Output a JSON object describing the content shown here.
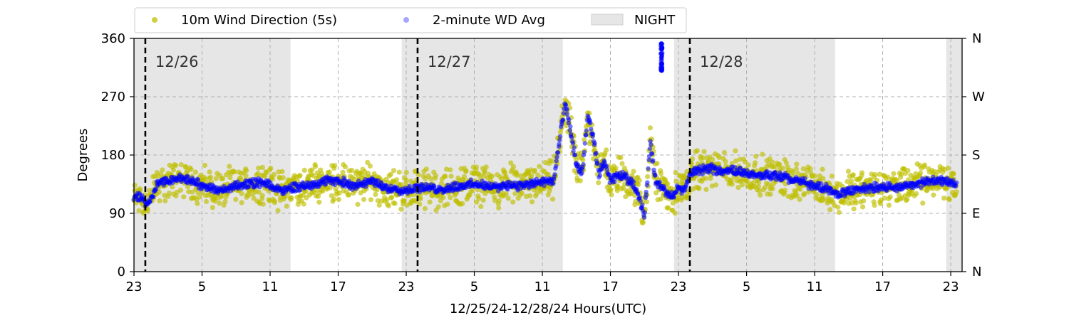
{
  "chart_data": {
    "type": "scatter",
    "xlabel": "12/25/24-12/28/24  Hours(UTC)",
    "ylabel": "Degrees",
    "ylim": [
      0,
      360
    ],
    "y_ticks": [
      0,
      90,
      180,
      270,
      360
    ],
    "y_tick_labels": [
      "0",
      "90",
      "180",
      "270",
      "360"
    ],
    "y2_ticks": [
      0,
      90,
      180,
      270,
      360
    ],
    "y2_tick_labels": [
      "N",
      "E",
      "S",
      "W",
      "N"
    ],
    "x_axis_unit": "hours since 23:00 UTC 12/25/24",
    "xlim": [
      0,
      73
    ],
    "x_ticks": [
      0,
      6,
      12,
      18,
      24,
      30,
      36,
      42,
      48,
      54,
      60,
      66,
      72
    ],
    "x_tick_labels": [
      "23",
      "5",
      "11",
      "17",
      "23",
      "5",
      "11",
      "17",
      "23",
      "5",
      "11",
      "17",
      "23"
    ],
    "grid": true,
    "legend_position": "top",
    "legend": [
      {
        "label": "10m Wind Direction (5s)",
        "color": "#bfbf00",
        "marker": "dot"
      },
      {
        "label": "2-minute WD Avg",
        "color": "#0000ff",
        "marker": "dot-faded"
      },
      {
        "label": "NIGHT",
        "color": "#e6e6e6",
        "marker": "patch"
      }
    ],
    "night_periods": [
      {
        "start": 0.0,
        "end": 13.8
      },
      {
        "start": 23.6,
        "end": 37.8
      },
      {
        "start": 47.6,
        "end": 61.8
      },
      {
        "start": 71.6,
        "end": 73.0
      }
    ],
    "day_markers": [
      {
        "x": 1.0,
        "label": "12/26"
      },
      {
        "x": 25.0,
        "label": "12/27"
      },
      {
        "x": 49.0,
        "label": "12/28"
      }
    ],
    "series": [
      {
        "name": "10m Wind Direction (5s)",
        "color": "#bfbf00",
        "spread": 35,
        "x": [
          0.0,
          0.5,
          1.0,
          1.5,
          2.0,
          3.0,
          4.0,
          5.0,
          6.0,
          7.0,
          8.0,
          9.0,
          10.0,
          11.0,
          12.0,
          13.0,
          14.0,
          15.0,
          16.0,
          17.0,
          18.0,
          19.0,
          20.0,
          21.0,
          22.0,
          23.0,
          24.0,
          25.0,
          26.0,
          27.0,
          28.0,
          29.0,
          30.0,
          31.0,
          32.0,
          33.0,
          34.0,
          35.0,
          36.0,
          37.0,
          38.0,
          38.5,
          39.0,
          39.5,
          40.0,
          40.5,
          41.0,
          41.5,
          42.0,
          42.5,
          43.0,
          43.5,
          44.0,
          44.5,
          45.0,
          45.5,
          46.0,
          46.5,
          47.0,
          47.5,
          48.0,
          48.5,
          49.0,
          49.5,
          50.0,
          51.0,
          52.0,
          53.0,
          54.0,
          55.0,
          56.0,
          57.0,
          58.0,
          59.0,
          60.0,
          61.0,
          62.0,
          63.0,
          64.0,
          65.0,
          66.0,
          67.0,
          68.0,
          69.0,
          70.0,
          71.0,
          72.0,
          72.5
        ],
        "y": [
          112,
          118,
          105,
          110,
          135,
          140,
          145,
          140,
          133,
          128,
          125,
          135,
          133,
          138,
          132,
          125,
          130,
          132,
          137,
          140,
          140,
          135,
          133,
          140,
          130,
          128,
          125,
          130,
          128,
          127,
          130,
          133,
          135,
          132,
          130,
          135,
          132,
          135,
          138,
          140,
          260,
          215,
          165,
          150,
          240,
          205,
          150,
          170,
          140,
          145,
          150,
          142,
          138,
          115,
          85,
          200,
          140,
          130,
          120,
          115,
          130,
          125,
          150,
          155,
          158,
          158,
          156,
          156,
          152,
          150,
          148,
          147,
          142,
          138,
          132,
          128,
          118,
          125,
          127,
          130,
          132,
          128,
          132,
          135,
          140,
          140,
          138,
          135
        ]
      },
      {
        "name": "2-minute WD Avg",
        "color": "#0000ff",
        "spread": 8,
        "x": [
          0.0,
          0.5,
          1.0,
          1.5,
          2.0,
          3.0,
          4.0,
          5.0,
          6.0,
          7.0,
          8.0,
          9.0,
          10.0,
          11.0,
          12.0,
          13.0,
          14.0,
          15.0,
          16.0,
          17.0,
          18.0,
          19.0,
          20.0,
          21.0,
          22.0,
          23.0,
          24.0,
          25.0,
          26.0,
          27.0,
          28.0,
          29.0,
          30.0,
          31.0,
          32.0,
          33.0,
          34.0,
          35.0,
          36.0,
          37.0,
          38.0,
          38.5,
          39.0,
          39.5,
          40.0,
          40.5,
          41.0,
          41.5,
          42.0,
          42.5,
          43.0,
          43.5,
          44.0,
          44.5,
          45.0,
          45.5,
          46.0,
          46.5,
          47.0,
          47.5,
          48.0,
          48.5,
          49.0,
          49.5,
          50.0,
          51.0,
          52.0,
          53.0,
          54.0,
          55.0,
          56.0,
          57.0,
          58.0,
          59.0,
          60.0,
          61.0,
          62.0,
          63.0,
          64.0,
          65.0,
          66.0,
          67.0,
          68.0,
          69.0,
          70.0,
          71.0,
          72.0,
          72.5
        ],
        "y": [
          112,
          118,
          105,
          110,
          135,
          140,
          145,
          140,
          133,
          128,
          125,
          135,
          133,
          138,
          132,
          125,
          130,
          132,
          137,
          140,
          140,
          135,
          133,
          140,
          130,
          128,
          125,
          130,
          128,
          127,
          130,
          133,
          135,
          132,
          130,
          135,
          132,
          135,
          138,
          140,
          260,
          215,
          165,
          150,
          240,
          205,
          150,
          170,
          140,
          145,
          150,
          142,
          138,
          115,
          85,
          200,
          140,
          130,
          120,
          115,
          130,
          125,
          150,
          155,
          158,
          158,
          156,
          156,
          152,
          150,
          148,
          147,
          142,
          138,
          132,
          128,
          118,
          125,
          127,
          130,
          132,
          128,
          132,
          135,
          140,
          140,
          138,
          135
        ]
      }
    ],
    "annotations": [
      {
        "x": 46.5,
        "y_range": [
          310,
          355
        ],
        "note": "blue cluster near north"
      }
    ]
  }
}
